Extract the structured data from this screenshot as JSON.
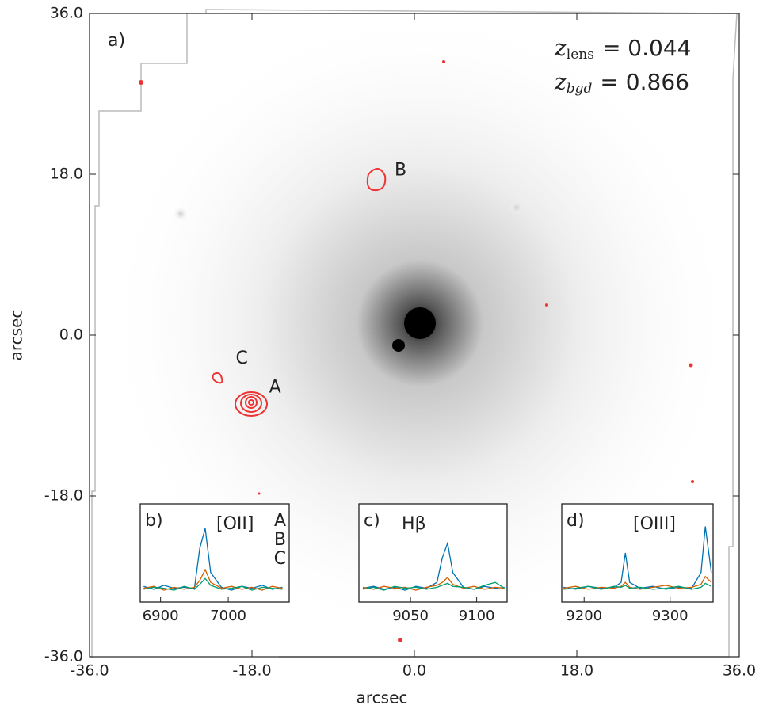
{
  "chart_data": [
    {
      "type": "image",
      "panel_label": "a)",
      "x_label": "arcsec",
      "y_label": "arcsec",
      "xlim": [
        -36,
        36
      ],
      "ylim": [
        -36,
        36
      ],
      "xticks": [
        {
          "value": -36,
          "label": "-36.0"
        },
        {
          "value": -18,
          "label": "-18.0"
        },
        {
          "value": 0,
          "label": "0.0"
        },
        {
          "value": 18,
          "label": "18.0"
        },
        {
          "value": 36,
          "label": "36.0"
        }
      ],
      "yticks": [
        {
          "value": -36,
          "label": "-36.0"
        },
        {
          "value": -18,
          "label": "-18.0"
        },
        {
          "value": 0,
          "label": "0.0"
        },
        {
          "value": 18,
          "label": "18.0"
        },
        {
          "value": 36,
          "label": "36.0"
        }
      ],
      "redshift_labels": [
        {
          "symbol": "z",
          "subscript": "lens",
          "text": "= 0.044"
        },
        {
          "symbol": "z",
          "subscript": "bgd",
          "text": "= 0.866"
        }
      ],
      "annotations": [
        {
          "text": "A",
          "color": "#0072b2",
          "x": -16.1,
          "y": -5.9
        },
        {
          "text": "B",
          "color": "#d55e00",
          "x": -2.2,
          "y": 18.4
        },
        {
          "text": "C",
          "color": "#009e73",
          "x": -19.8,
          "y": -2.65
        }
      ]
    },
    {
      "type": "line",
      "panel_label": "b)",
      "line_label": "[OII]",
      "legend": true,
      "x": [
        6875,
        6890,
        6905,
        6920,
        6935,
        6950,
        6958,
        6966,
        6974,
        6990,
        7005,
        7020,
        7035,
        7050,
        7065,
        7080
      ],
      "xlim": [
        6870,
        7090
      ],
      "xticks": [
        6900,
        7000
      ],
      "ylim": [
        0,
        1
      ],
      "series": [
        {
          "name": "A",
          "color": "#0072b2",
          "values": [
            0.16,
            0.13,
            0.17,
            0.14,
            0.15,
            0.14,
            0.55,
            0.75,
            0.3,
            0.15,
            0.12,
            0.16,
            0.14,
            0.17,
            0.13,
            0.15
          ]
        },
        {
          "name": "B",
          "color": "#d55e00",
          "values": [
            0.14,
            0.16,
            0.12,
            0.15,
            0.13,
            0.15,
            0.22,
            0.33,
            0.2,
            0.14,
            0.16,
            0.13,
            0.15,
            0.12,
            0.16,
            0.14
          ]
        },
        {
          "name": "C",
          "color": "#009e73",
          "values": [
            0.13,
            0.15,
            0.14,
            0.12,
            0.16,
            0.13,
            0.18,
            0.24,
            0.17,
            0.13,
            0.14,
            0.16,
            0.12,
            0.15,
            0.14,
            0.13
          ]
        }
      ]
    },
    {
      "type": "line",
      "panel_label": "c)",
      "line_label": "Hβ",
      "legend": false,
      "x": [
        9014,
        9022,
        9030,
        9038,
        9046,
        9054,
        9062,
        9070,
        9074,
        9078,
        9082,
        9090,
        9098,
        9106,
        9114,
        9121
      ],
      "xlim": [
        9011,
        9123
      ],
      "xticks": [
        9050,
        9100
      ],
      "ylim": [
        0,
        1
      ],
      "series": [
        {
          "color": "#0072b2",
          "values": [
            0.14,
            0.16,
            0.13,
            0.15,
            0.12,
            0.16,
            0.14,
            0.2,
            0.45,
            0.6,
            0.3,
            0.15,
            0.13,
            0.16,
            0.14,
            0.15
          ]
        },
        {
          "color": "#d55e00",
          "values": [
            0.15,
            0.13,
            0.16,
            0.14,
            0.15,
            0.12,
            0.15,
            0.17,
            0.2,
            0.25,
            0.18,
            0.14,
            0.16,
            0.13,
            0.15,
            0.14
          ]
        },
        {
          "color": "#009e73",
          "values": [
            0.13,
            0.15,
            0.12,
            0.16,
            0.14,
            0.15,
            0.13,
            0.15,
            0.17,
            0.19,
            0.16,
            0.15,
            0.13,
            0.17,
            0.2,
            0.14
          ]
        }
      ]
    },
    {
      "type": "line",
      "panel_label": "d)",
      "line_label": "[OIII]",
      "legend": false,
      "x": [
        9176,
        9190,
        9205,
        9220,
        9235,
        9243,
        9248,
        9253,
        9265,
        9280,
        9295,
        9310,
        9325,
        9336,
        9341,
        9348
      ],
      "xlim": [
        9174,
        9350
      ],
      "xticks": [
        9200,
        9300
      ],
      "ylim": [
        0,
        1
      ],
      "series": [
        {
          "color": "#0072b2",
          "values": [
            0.15,
            0.13,
            0.16,
            0.14,
            0.15,
            0.2,
            0.5,
            0.2,
            0.14,
            0.16,
            0.13,
            0.15,
            0.14,
            0.3,
            0.77,
            0.3
          ]
        },
        {
          "color": "#d55e00",
          "values": [
            0.14,
            0.16,
            0.13,
            0.15,
            0.14,
            0.16,
            0.2,
            0.15,
            0.13,
            0.15,
            0.17,
            0.14,
            0.15,
            0.18,
            0.26,
            0.2
          ]
        },
        {
          "color": "#009e73",
          "values": [
            0.13,
            0.14,
            0.16,
            0.13,
            0.16,
            0.15,
            0.17,
            0.14,
            0.15,
            0.13,
            0.14,
            0.16,
            0.13,
            0.15,
            0.19,
            0.16
          ]
        }
      ]
    }
  ]
}
